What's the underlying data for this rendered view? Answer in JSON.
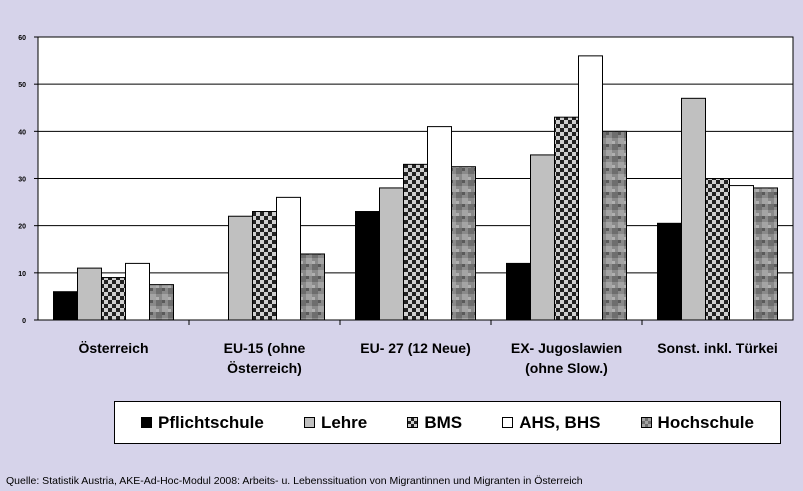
{
  "chart_data": {
    "type": "bar",
    "categories": [
      "Österreich",
      "EU-15 (ohne Österreich)",
      "EU- 27 (12 Neue)",
      "EX- Jugoslawien (ohne Slow.)",
      "Sonst. inkl. Türkei"
    ],
    "category_lines": [
      [
        "Österreich"
      ],
      [
        "EU-15 (ohne",
        "Österreich)"
      ],
      [
        "EU- 27 (12 Neue)"
      ],
      [
        "EX- Jugoslawien",
        "(ohne Slow.)"
      ],
      [
        "Sonst. inkl. Türkei"
      ]
    ],
    "series": [
      {
        "name": "Pflichtschule",
        "fill": "solid-black",
        "values": [
          6,
          0,
          23,
          12,
          20.5
        ]
      },
      {
        "name": "Lehre",
        "fill": "light-gray",
        "values": [
          11,
          22,
          28,
          35,
          47
        ]
      },
      {
        "name": "BMS",
        "fill": "checker",
        "values": [
          9,
          23,
          33,
          43,
          30
        ]
      },
      {
        "name": "AHS, BHS",
        "fill": "white",
        "values": [
          12,
          26,
          41,
          56,
          28.5
        ]
      },
      {
        "name": "Hochschule",
        "fill": "mosaic-gray",
        "values": [
          7.5,
          14,
          32.5,
          40,
          28
        ]
      }
    ],
    "y_ticks": [
      "0",
      "10",
      "20",
      "30",
      "40",
      "50",
      "60"
    ],
    "ylim": [
      0,
      60
    ],
    "grid": true,
    "legend_position": "bottom",
    "title": "",
    "xlabel": "",
    "ylabel": ""
  },
  "source_note": "Quelle: Statistik Austria, AKE-Ad-Hoc-Modul 2008: Arbeits- u. Lebenssituation von Migrantinnen und Migranten in Österreich",
  "colors": {
    "background": "#d6d3ea",
    "plot_area": "#ffffff",
    "pflichtschule": "#000000",
    "lehre": "#c0c0c0",
    "bms_dark": "#222222",
    "bms_light": "#d0d0d0",
    "ahs_bhs": "#ffffff",
    "hochschule": "#8a8a8a"
  }
}
